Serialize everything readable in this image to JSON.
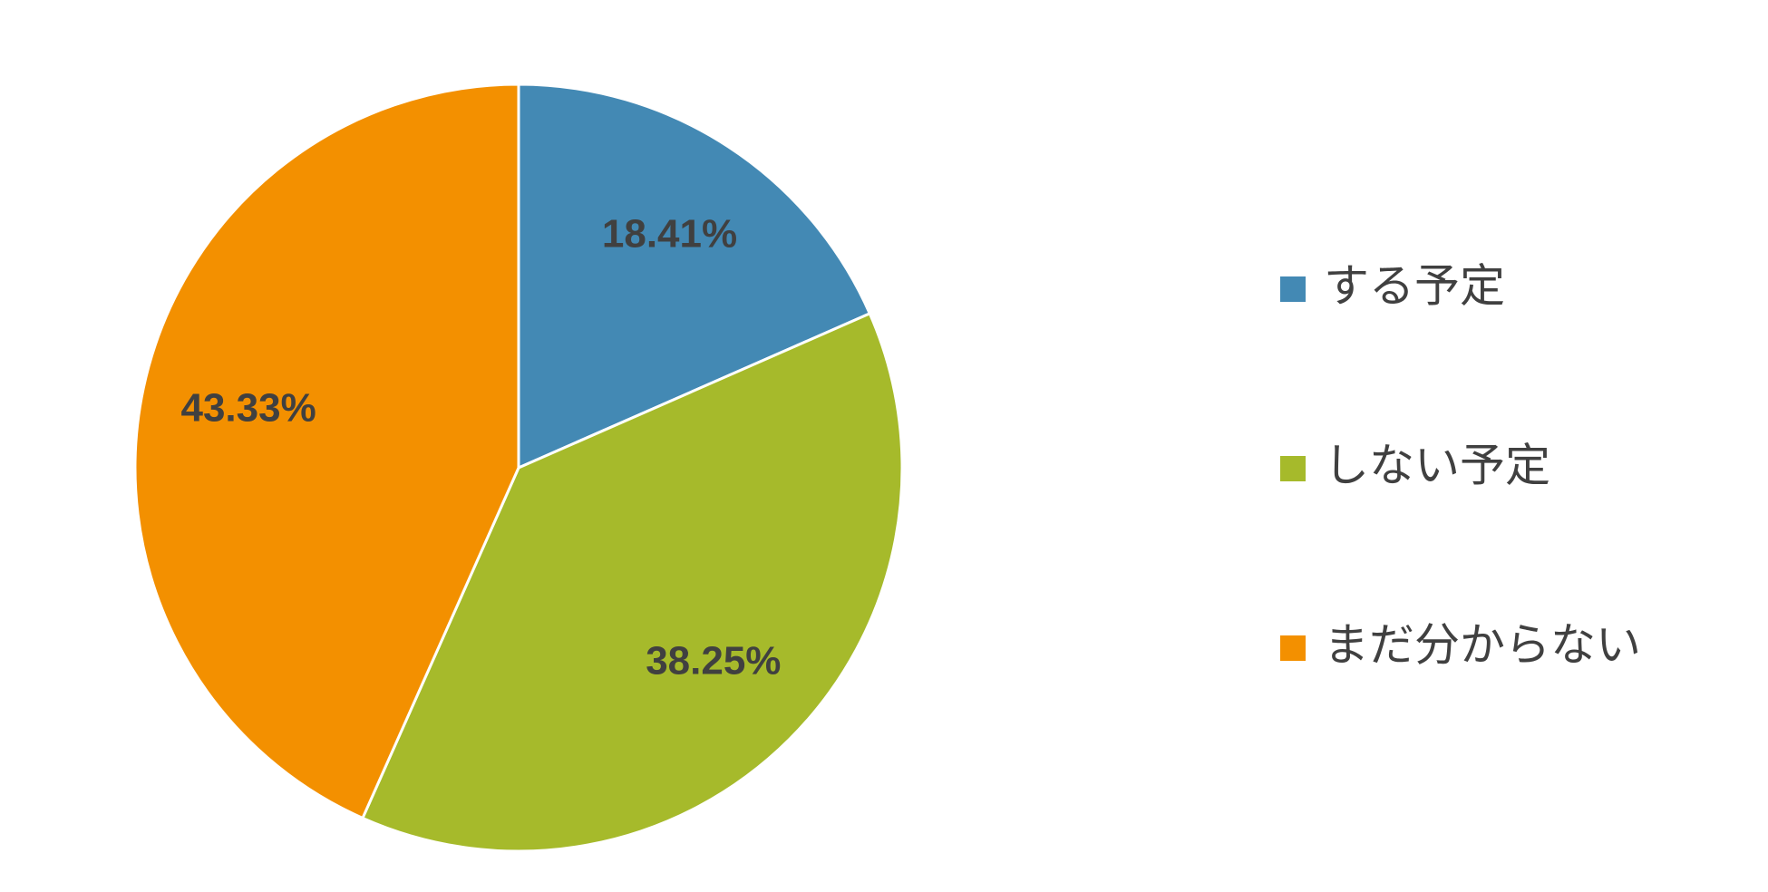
{
  "chart_data": {
    "type": "pie",
    "categories": [
      "する予定",
      "しない予定",
      "まだ分からない"
    ],
    "values": [
      18.41,
      38.25,
      43.33
    ],
    "value_labels": [
      "18.41%",
      "38.25%",
      "43.33%"
    ],
    "colors": [
      "#4389b4",
      "#a6ba2b",
      "#f39000"
    ],
    "legend": "right"
  }
}
